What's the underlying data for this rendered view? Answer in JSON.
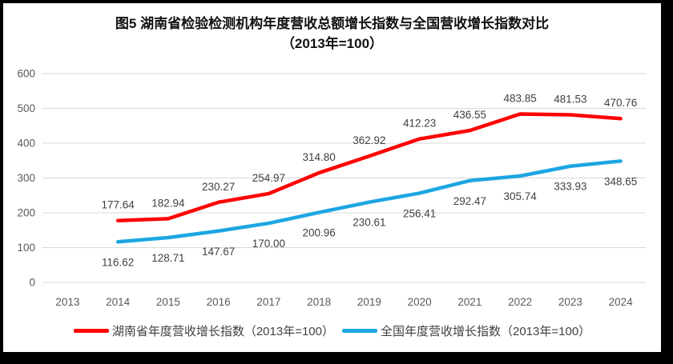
{
  "frame": {
    "border_color": "#000000",
    "background_color": "#ffffff"
  },
  "chart_data": {
    "type": "line",
    "title": "图5 湖南省检验检测机构年度营收总额增长指数与全国营收增长指数对比",
    "subtitle": "（2013年=100）",
    "categories": [
      "2013",
      "2014",
      "2015",
      "2016",
      "2017",
      "2018",
      "2019",
      "2020",
      "2021",
      "2022",
      "2023",
      "2024"
    ],
    "series": [
      {
        "name": "湖南省年度营收增长指数（2013年=100）",
        "color": "#FF0000",
        "label_position": "above",
        "values": [
          null,
          177.64,
          182.94,
          230.27,
          254.97,
          314.8,
          362.92,
          412.23,
          436.55,
          483.85,
          481.53,
          470.76
        ]
      },
      {
        "name": "全国年度营收增长指数（2013年=100）",
        "color": "#1CA6E2",
        "label_position": "below",
        "values": [
          null,
          116.62,
          128.71,
          147.67,
          170.0,
          200.96,
          230.61,
          256.41,
          292.47,
          305.74,
          333.93,
          348.65
        ]
      }
    ],
    "ylim": [
      0,
      600
    ],
    "ytick_step": 100,
    "grid": true,
    "legend_position": "bottom",
    "gridline_color": "#D9D9D9",
    "axis_label_color": "#595959",
    "data_label_color": "#404040"
  }
}
